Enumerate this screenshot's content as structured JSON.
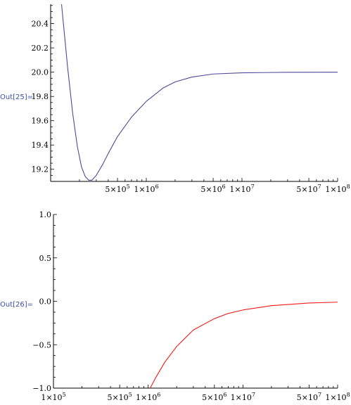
{
  "cells": [
    {
      "label": "Out[25]="
    },
    {
      "label": "Out[26]="
    }
  ],
  "chart_data": [
    {
      "type": "line",
      "scale_x": "log",
      "xlim": [
        100000,
        100000000
      ],
      "ylim": [
        19.1,
        20.56
      ],
      "grid": false,
      "y_ticks": [
        "19.2",
        "19.4",
        "19.6",
        "19.8",
        "20.0",
        "20.2",
        "20.4"
      ],
      "x_tick_labels": [
        {
          "mant": "5",
          "exp": "5",
          "value": 500000
        },
        {
          "mant": "1",
          "exp": "6",
          "value": 1000000
        },
        {
          "mant": "5",
          "exp": "6",
          "value": 5000000
        },
        {
          "mant": "1",
          "exp": "7",
          "value": 10000000
        },
        {
          "mant": "5",
          "exp": "7",
          "value": 50000000
        },
        {
          "mant": "1",
          "exp": "8",
          "value": 100000000
        }
      ],
      "series": [
        {
          "color": "#4b4b9c",
          "points": [
            [
              130000,
              20.56
            ],
            [
              150000,
              20.05
            ],
            [
              170000,
              19.66
            ],
            [
              190000,
              19.39
            ],
            [
              210000,
              19.22
            ],
            [
              230000,
              19.14
            ],
            [
              250000,
              19.11
            ],
            [
              270000,
              19.11
            ],
            [
              300000,
              19.15
            ],
            [
              350000,
              19.24
            ],
            [
              400000,
              19.33
            ],
            [
              500000,
              19.47
            ],
            [
              700000,
              19.63
            ],
            [
              1000000,
              19.76
            ],
            [
              1500000,
              19.87
            ],
            [
              2000000,
              19.92
            ],
            [
              3000000,
              19.96
            ],
            [
              5000000,
              19.985
            ],
            [
              10000000,
              19.995
            ],
            [
              30000000,
              19.999
            ],
            [
              100000000,
              20.0
            ]
          ]
        }
      ]
    },
    {
      "type": "line",
      "scale_x": "log",
      "xlim": [
        100000,
        100000000
      ],
      "ylim": [
        -1.0,
        1.0
      ],
      "grid": false,
      "y_ticks": [
        "-1.0",
        "-0.5",
        "0.0",
        "0.5",
        "1.0"
      ],
      "x_tick_labels": [
        {
          "mant": "1",
          "exp": "5",
          "value": 100000
        },
        {
          "mant": "5",
          "exp": "5",
          "value": 500000
        },
        {
          "mant": "1",
          "exp": "6",
          "value": 1000000
        },
        {
          "mant": "5",
          "exp": "6",
          "value": 5000000
        },
        {
          "mant": "1",
          "exp": "7",
          "value": 10000000
        },
        {
          "mant": "5",
          "exp": "7",
          "value": 50000000
        },
        {
          "mant": "1",
          "exp": "8",
          "value": 100000000
        }
      ],
      "series": [
        {
          "color": "#ee1c1c",
          "points": [
            [
              1050000,
              -1.0
            ],
            [
              1200000,
              -0.88
            ],
            [
              1500000,
              -0.7
            ],
            [
              2000000,
              -0.52
            ],
            [
              3000000,
              -0.33
            ],
            [
              5000000,
              -0.2
            ],
            [
              7000000,
              -0.14
            ],
            [
              10000000,
              -0.1
            ],
            [
              20000000,
              -0.05
            ],
            [
              50000000,
              -0.02
            ],
            [
              100000000,
              -0.01
            ]
          ]
        }
      ]
    }
  ]
}
